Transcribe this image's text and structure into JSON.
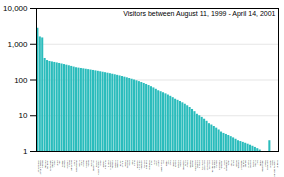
{
  "chart_data": {
    "type": "bar",
    "title": "Visitors between August 11, 1999 - April 14, 2001",
    "categories": [
      "United States",
      "United Kingdom",
      "Canada",
      "Australia",
      "Germany",
      "Netherlands",
      "Sweden",
      "France",
      "Japan",
      "Italy",
      "Norway",
      "Belgium",
      "Denmark",
      "Finland",
      "Switzerland",
      "Spain",
      "New Zealand",
      "Austria",
      "Brazil",
      "Ireland",
      "Portugal",
      "Poland",
      "Mexico",
      "South Africa",
      "Greece",
      "Czech Republic",
      "Israel",
      "Hungary",
      "Argentina",
      "Croatia",
      "Singapore",
      "Romania",
      "Slovakia",
      "Bulgaria",
      "Turkey",
      "Ukraine",
      "Russia",
      "Thailand",
      "Korea",
      "India",
      "China",
      "Malaysia",
      "Philippines",
      "Indonesia",
      "Pakistan",
      "Colombia",
      "Venezuela",
      "Chile",
      "Peru",
      "Egypt",
      "Jordan",
      "Saudi Arabia",
      "Iran",
      "Kuwait",
      "UAE",
      "Latvia",
      "Lithuania",
      "Estonia",
      "Slovenia",
      "Bosnia",
      "Macedonia",
      "Serbia",
      "Albania",
      "Moldova",
      "Belarus",
      "Kazakhstan",
      "Georgia",
      "Armenia",
      "Azerbaijan",
      "Uzbekistan",
      "Kyrgyzstan",
      "Tajikistan",
      "Turkmenistan",
      "Mongolia",
      "Vietnam",
      "Cambodia",
      "Myanmar",
      "Sri Lanka",
      "Bangladesh",
      "Nepal",
      "Nigeria",
      "Kenya",
      "Ghana",
      "Tanzania",
      "Zimbabwe",
      "Zambia",
      "Uganda",
      "Ethiopia",
      "Morocco",
      "Tunisia",
      "Algeria",
      "Libya",
      "Sudan",
      "Mozambique",
      "Angola",
      "Cameroon",
      "Senegal",
      "Cuba",
      "Dominican Republic",
      "Jamaica"
    ],
    "values": [
      2800,
      1600,
      1500,
      400,
      350,
      330,
      320,
      310,
      300,
      290,
      280,
      270,
      260,
      250,
      240,
      230,
      220,
      215,
      210,
      205,
      200,
      195,
      190,
      185,
      180,
      175,
      170,
      165,
      160,
      155,
      150,
      145,
      140,
      135,
      130,
      125,
      120,
      115,
      110,
      105,
      100,
      95,
      90,
      85,
      80,
      75,
      70,
      65,
      60,
      55,
      50,
      47,
      44,
      41,
      38,
      35,
      32,
      29,
      27,
      25,
      23,
      21,
      19,
      17,
      15,
      13,
      11,
      10,
      9,
      8,
      7,
      6,
      5.5,
      5,
      4.5,
      4,
      3.5,
      3.2,
      3,
      2.8,
      2.6,
      2.4,
      2.2,
      2,
      1.9,
      1.8,
      1.7,
      1.6,
      1.5,
      1.4,
      1.3,
      1.2,
      1.1,
      1,
      1,
      1,
      2,
      1,
      1,
      1
    ],
    "color": "#2abcbc",
    "log": "y",
    "ylim": [
      1,
      10000
    ],
    "yticks": [
      1,
      10,
      100,
      {
        "value": 1000,
        "label": "1,000"
      },
      {
        "value": 10000,
        "label": "10,000"
      }
    ],
    "grid": true
  }
}
